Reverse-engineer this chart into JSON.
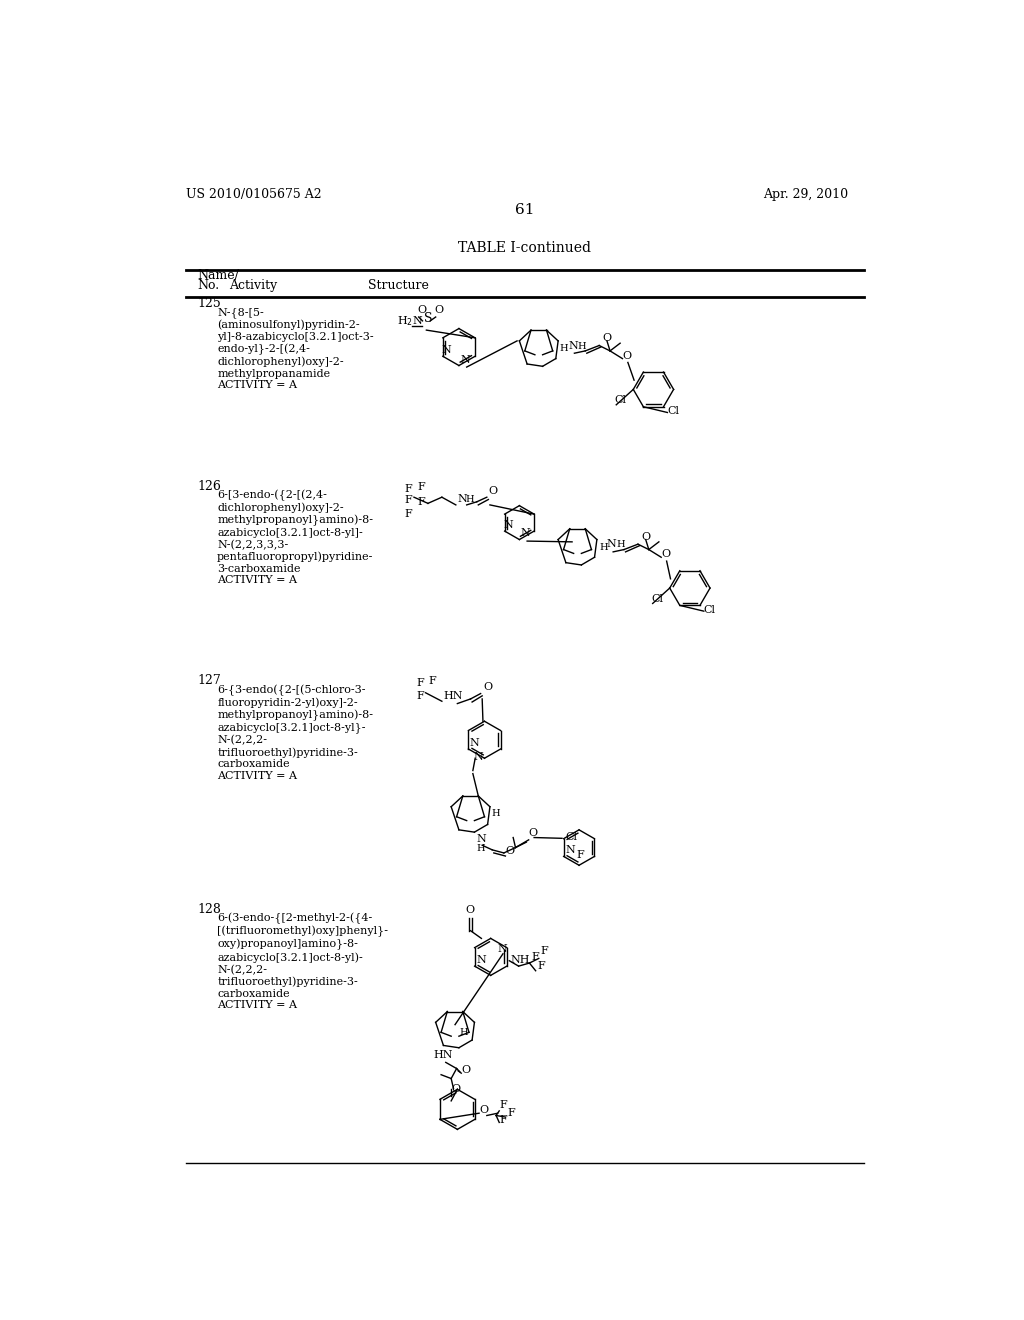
{
  "page_number": "61",
  "patent_number": "US 2010/0105675 A2",
  "patent_date": "Apr. 29, 2010",
  "table_title": "TABLE I-continued",
  "background_color": "#ffffff",
  "text_color": "#000000",
  "entries": [
    {
      "no": "125",
      "name": "N-{8-[5-\n(aminosulfonyl)pyridin-2-\nyl]-8-azabicyclo[3.2.1]oct-3-\nendo-yl}-2-[(2,4-\ndichlorophenyl)oxy]-2-\nmethylpropanamide\nACTIVITY = A"
    },
    {
      "no": "126",
      "name": "6-[3-endo-({2-[(2,4-\ndichlorophenyl)oxy]-2-\nmethylpropanoyl}amino)-8-\nazabicyclo[3.2.1]oct-8-yl]-\nN-(2,2,3,3,3-\npentafluoropropyl)pyridine-\n3-carboxamide\nACTIVITY = A"
    },
    {
      "no": "127",
      "name": "6-{3-endo({2-[(5-chloro-3-\nfluoropyridin-2-yl)oxy]-2-\nmethylpropanoyl}amino)-8-\nazabicyclo[3.2.1]oct-8-yl}-\nN-(2,2,2-\ntrifluoroethyl)pyridine-3-\ncarboxamide\nACTIVITY = A"
    },
    {
      "no": "128",
      "name": "6-(3-endo-{[2-methyl-2-({4-\n[(trifluoromethyl)oxy]phenyl}-\noxy)propanoyl]amino}-8-\nazabicyclo[3.2.1]oct-8-yl)-\nN-(2,2,2-\ntrifluoroethyl)pyridine-3-\ncarboxamide\nACTIVITY = A"
    }
  ]
}
